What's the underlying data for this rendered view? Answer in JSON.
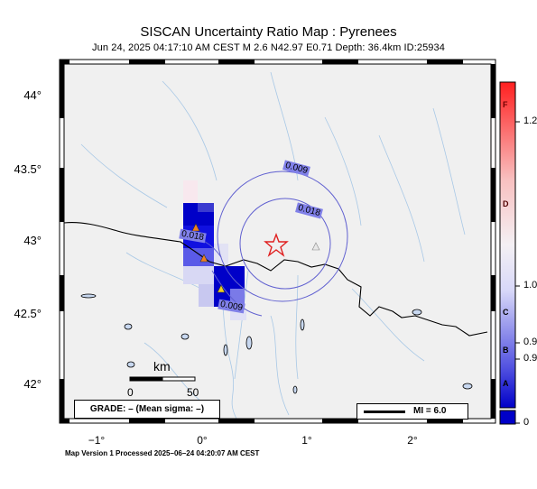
{
  "header": {
    "title": "SISCAN Uncertainty Ratio Map : Pyrenees",
    "subtitle": "Jun 24, 2025 04:17:10 AM CEST   M 2.6   N42.97 E0.71   Depth: 36.4km   ID:25934"
  },
  "footer": {
    "text": "Map Version 1 Processed 2025–06–24 04:20:07 AM CEST"
  },
  "map": {
    "latitude_labels": [
      "44°",
      "43.5°",
      "43°",
      "42.5°",
      "42°"
    ],
    "longitude_labels": [
      "−1°",
      "0°",
      "1°",
      "2°"
    ],
    "epicenter": {
      "lat": 42.97,
      "lon": 0.71,
      "symbol": "star",
      "color": "#e02020"
    },
    "contour_labels": [
      "0.009",
      "0.018",
      "0.018",
      "0.009"
    ],
    "station_colors": {
      "orange": "#f08020",
      "yellow": "#f0d020",
      "gray": "#999999"
    }
  },
  "scale_bar": {
    "unit": "km",
    "ticks": [
      "0",
      "50"
    ]
  },
  "grade_box": {
    "text": "GRADE: – (Mean sigma: –)"
  },
  "mi_box": {
    "text": "MI = 6.0"
  },
  "colorbar": {
    "letters": [
      "F",
      "D",
      "C",
      "B",
      "A"
    ],
    "values": [
      "1.2",
      "1.0",
      "0.9",
      "0.9",
      "0"
    ],
    "colors": {
      "low": "#0000c8",
      "mid": "#f0f0ff",
      "high": "#ff2020"
    }
  }
}
